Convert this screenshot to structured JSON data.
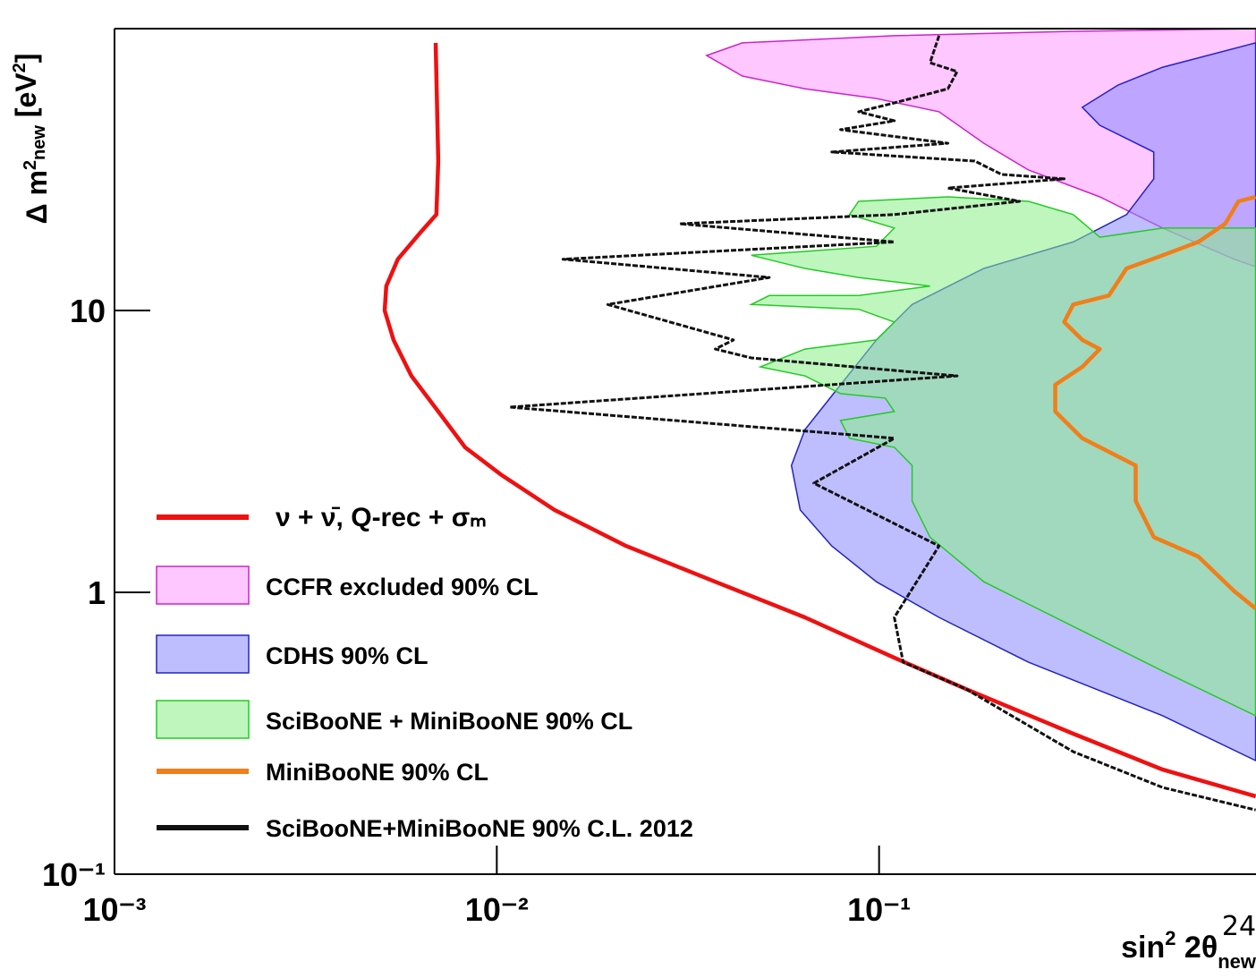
{
  "chart_data": {
    "type": "line",
    "xlabel_parts": [
      "sin",
      "2",
      " 2θ",
      "new"
    ],
    "ylabel_parts": [
      "Δ m",
      "2",
      "new",
      " [eV",
      "2",
      "]"
    ],
    "page_number": "24",
    "xscale": "log",
    "yscale": "log",
    "xlim": [
      0.001,
      1
    ],
    "ylim": [
      0.1,
      100
    ],
    "xticks": [
      {
        "value": 0.001,
        "label": "10⁻³"
      },
      {
        "value": 0.01,
        "label": "10⁻²"
      },
      {
        "value": 0.1,
        "label": "10⁻¹"
      }
    ],
    "yticks": [
      {
        "value": 0.1,
        "label": "10⁻¹"
      },
      1,
      10
    ],
    "legend": "lower left",
    "series": [
      {
        "name": "ν + ν̄, Q-rec + σₘ",
        "kind": "line",
        "color": "#ee1111",
        "x": [
          0.00692,
          0.00703,
          0.00695,
          0.00631,
          0.00551,
          0.00514,
          0.00509,
          0.00537,
          0.00598,
          0.00703,
          0.00826,
          0.01024,
          0.01415,
          0.0218,
          0.0373,
          0.064,
          0.1096,
          0.1687,
          0.322,
          0.552,
          0.966
        ],
        "y": [
          89,
          33.9,
          21.9,
          18.9,
          15.2,
          12.2,
          10,
          7.86,
          5.86,
          4.38,
          3.27,
          2.62,
          1.96,
          1.46,
          1.09,
          0.815,
          0.586,
          0.454,
          0.315,
          0.235,
          0.189
        ]
      },
      {
        "name": "CCFR excluded 90% CL",
        "kind": "area",
        "color": "#ff99ff",
        "edge": "#cc22cc",
        "x": [
          0.0354,
          0.0439,
          0.1096,
          0.322,
          0.966,
          0.966,
          0.849,
          0.552,
          0.378,
          0.246,
          0.188,
          0.1435,
          0.0984,
          0.064,
          0.0439
        ],
        "y": [
          80.3,
          89,
          94.4,
          97.8,
          100,
          14.3,
          15.2,
          19.6,
          25.3,
          31.5,
          39.2,
          50.7,
          56.5,
          61.2,
          67.9
        ]
      },
      {
        "name": "CDHS 90% CL",
        "kind": "area",
        "color": "#8888ff",
        "edge": "#2222cc",
        "x": [
          0.966,
          0.552,
          0.422,
          0.34,
          0.378,
          0.523,
          0.523,
          0.444,
          0.322,
          0.188,
          0.122,
          0.0984,
          0.0793,
          0.064,
          0.059,
          0.0622,
          0.0752,
          0.0984,
          0.1435,
          0.246,
          0.552,
          0.966
        ],
        "y": [
          89,
          73,
          63.1,
          52.6,
          45.4,
          36.5,
          29.3,
          21.9,
          17.5,
          14.1,
          10.5,
          7.86,
          5.45,
          3.78,
          2.82,
          1.96,
          1.46,
          1.09,
          0.815,
          0.565,
          0.365,
          0.253
        ]
      },
      {
        "name": "SciBooNE + MiniBooNE 90% CL",
        "kind": "area",
        "color": "#88ee88",
        "edge": "#22cc22",
        "x": [
          0.966,
          0.552,
          0.378,
          0.322,
          0.246,
          0.1514,
          0.0884,
          0.0837,
          0.1096,
          0.0984,
          0.0463,
          0.064,
          0.0884,
          0.1359,
          0.0884,
          0.0516,
          0.0463,
          0.0884,
          0.1096,
          0.0984,
          0.064,
          0.0489,
          0.064,
          0.0793,
          0.1038,
          0.1096,
          0.0793,
          0.0837,
          0.1096,
          0.122,
          0.122,
          0.1359,
          0.188,
          0.322,
          0.552,
          0.966
        ],
        "y": [
          19.6,
          19.6,
          18.2,
          21.9,
          24.4,
          25.3,
          24.4,
          21.9,
          19.6,
          16.9,
          15.7,
          14.1,
          13.1,
          12.2,
          11.3,
          11.3,
          10.5,
          10.1,
          9.1,
          7.86,
          7.3,
          6.31,
          5.86,
          5.07,
          4.89,
          4.38,
          4.07,
          3.52,
          3.27,
          2.82,
          2.11,
          1.57,
          1.09,
          0.757,
          0.526,
          0.365
        ]
      },
      {
        "name": "MiniBooNE 90% CL",
        "kind": "line",
        "color": "#f07f1a",
        "x": [
          0.966,
          0.871,
          0.804,
          0.684,
          0.552,
          0.444,
          0.399,
          0.322,
          0.305,
          0.34,
          0.378,
          0.34,
          0.289,
          0.289,
          0.34,
          0.469,
          0.469,
          0.523,
          0.684,
          0.849,
          0.966
        ],
        "y": [
          25.3,
          24.4,
          20.3,
          17.5,
          15.7,
          14.1,
          11.3,
          10.5,
          9.1,
          7.86,
          7.3,
          6.31,
          5.45,
          4.38,
          3.52,
          2.82,
          2.11,
          1.57,
          1.34,
          1.01,
          0.876
        ]
      },
      {
        "name": "SciBooNE+MiniBooNE 90% C.L. 2012",
        "kind": "line",
        "color": "#111111",
        "x": [
          0.1435,
          0.1359,
          0.16,
          0.1514,
          0.1096,
          0.0884,
          0.1096,
          0.0793,
          0.1514,
          0.0752,
          0.178,
          0.209,
          0.305,
          0.1514,
          0.233,
          0.1096,
          0.0301,
          0.1096,
          0.0149,
          0.0516,
          0.0195,
          0.0416,
          0.0373,
          0.0463,
          0.16,
          0.0108,
          0.1096,
          0.0675,
          0.1435,
          0.1096,
          0.1156,
          0.1687,
          0.322,
          0.552,
          0.966
        ],
        "y": [
          94.4,
          75.7,
          70.4,
          61.2,
          54.5,
          50.7,
          47.1,
          43.8,
          39.2,
          36.5,
          33.9,
          30.4,
          29.3,
          27.2,
          24.4,
          21.9,
          20.3,
          17.5,
          15.2,
          13.1,
          10.5,
          7.86,
          7.3,
          6.79,
          5.86,
          4.54,
          3.52,
          2.44,
          1.46,
          0.815,
          0.565,
          0.454,
          0.272,
          0.203,
          0.169
        ]
      }
    ]
  }
}
